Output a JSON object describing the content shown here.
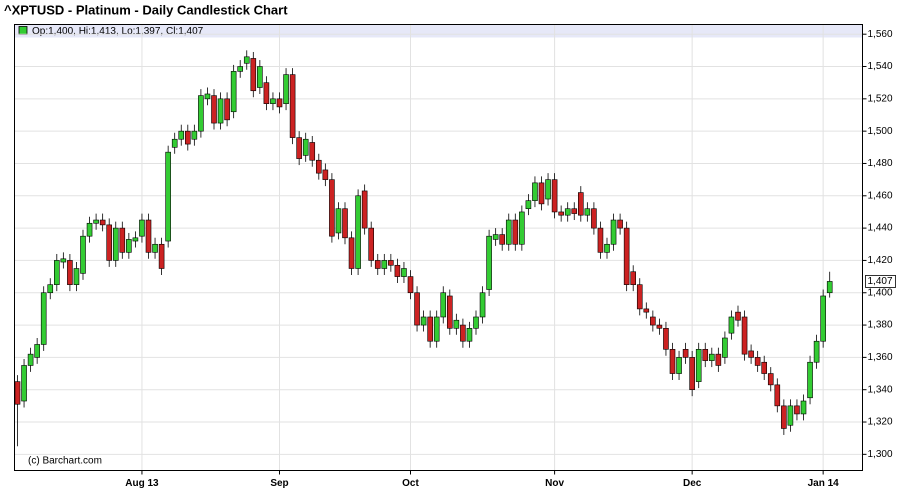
{
  "chart_data": {
    "type": "candlestick",
    "title": "^XPTUSD - Platinum - Daily Candlestick Chart",
    "legend_text": "Op:1,400, Hi:1,413, Lo:1,397, Cl:1,407",
    "credit": "(c) Barchart.com",
    "up_color": "#33cc33",
    "down_color": "#cc2222",
    "grid": true,
    "last_price": {
      "value": 1407,
      "label": "1,407"
    },
    "ylim": [
      1290,
      1566
    ],
    "yticks": [
      {
        "value": 1300,
        "label": "1,300"
      },
      {
        "value": 1320,
        "label": "1,320"
      },
      {
        "value": 1340,
        "label": "1,340"
      },
      {
        "value": 1360,
        "label": "1,360"
      },
      {
        "value": 1380,
        "label": "1,380"
      },
      {
        "value": 1400,
        "label": "1,400"
      },
      {
        "value": 1420,
        "label": "1,420"
      },
      {
        "value": 1440,
        "label": "1,440"
      },
      {
        "value": 1460,
        "label": "1,460"
      },
      {
        "value": 1480,
        "label": "1,480"
      },
      {
        "value": 1500,
        "label": "1,500"
      },
      {
        "value": 1520,
        "label": "1,520"
      },
      {
        "value": 1540,
        "label": "1,540"
      },
      {
        "value": 1560,
        "label": "1,560"
      }
    ],
    "categories": [
      null,
      null,
      null,
      null,
      null,
      null,
      null,
      null,
      null,
      null,
      null,
      null,
      null,
      null,
      null,
      null,
      null,
      null,
      null,
      "Aug 13",
      null,
      null,
      null,
      null,
      null,
      null,
      null,
      null,
      null,
      null,
      null,
      null,
      null,
      null,
      null,
      null,
      null,
      null,
      null,
      null,
      "Sep",
      null,
      null,
      null,
      null,
      null,
      null,
      null,
      null,
      null,
      null,
      null,
      null,
      null,
      null,
      null,
      null,
      null,
      null,
      null,
      "Oct",
      null,
      null,
      null,
      null,
      null,
      null,
      null,
      null,
      null,
      null,
      null,
      null,
      null,
      null,
      null,
      null,
      null,
      null,
      null,
      null,
      null,
      "Nov",
      null,
      null,
      null,
      null,
      null,
      null,
      null,
      null,
      null,
      null,
      null,
      null,
      null,
      null,
      null,
      null,
      null,
      null,
      null,
      null,
      "Dec",
      null,
      null,
      null,
      null,
      null,
      null,
      null,
      null,
      null,
      null,
      null,
      null,
      null,
      null,
      null,
      null,
      null,
      null,
      null,
      "Jan 14",
      null
    ],
    "open": [
      1345,
      1333,
      1355,
      1360,
      1368,
      1400,
      1405,
      1419,
      1420,
      1405,
      1412,
      1435,
      1443,
      1445,
      1442,
      1420,
      1440,
      1425,
      1432,
      1435,
      1445,
      1425,
      1430,
      1432,
      1490,
      1495,
      1500,
      1495,
      1500,
      1520,
      1522,
      1505,
      1520,
      1512,
      1537,
      1542,
      1545,
      1527,
      1530,
      1517,
      1520,
      1517,
      1535,
      1496,
      1485,
      1493,
      1482,
      1476,
      1470,
      1437,
      1452,
      1434,
      1415,
      1463,
      1440,
      1420,
      1415,
      1420,
      1417,
      1410,
      1410,
      1400,
      1380,
      1385,
      1370,
      1385,
      1398,
      1378,
      1380,
      1370,
      1378,
      1385,
      1402,
      1433,
      1436,
      1430,
      1445,
      1430,
      1452,
      1457,
      1468,
      1458,
      1470,
      1450,
      1448,
      1452,
      1462,
      1448,
      1452,
      1440,
      1425,
      1430,
      1445,
      1440,
      1413,
      1405,
      1390,
      1385,
      1380,
      1378,
      1365,
      1350,
      1365,
      1360,
      1345,
      1365,
      1358,
      1362,
      1360,
      1375,
      1388,
      1385,
      1364,
      1360,
      1357,
      1350,
      1343,
      1330,
      1318,
      1330,
      1325,
      1335,
      1357,
      1370,
      1400
    ],
    "high": [
      1349,
      1359,
      1366,
      1372,
      1404,
      1409,
      1424,
      1425,
      1424,
      1419,
      1439,
      1447,
      1449,
      1449,
      1446,
      1444,
      1444,
      1437,
      1438,
      1449,
      1449,
      1434,
      1434,
      1491,
      1499,
      1504,
      1504,
      1504,
      1526,
      1527,
      1526,
      1524,
      1524,
      1541,
      1544,
      1550,
      1549,
      1544,
      1534,
      1524,
      1524,
      1539,
      1539,
      1500,
      1499,
      1497,
      1486,
      1480,
      1474,
      1456,
      1456,
      1438,
      1464,
      1467,
      1444,
      1424,
      1424,
      1424,
      1421,
      1419,
      1414,
      1404,
      1389,
      1389,
      1389,
      1404,
      1402,
      1387,
      1384,
      1382,
      1389,
      1404,
      1439,
      1440,
      1440,
      1449,
      1449,
      1454,
      1461,
      1472,
      1472,
      1474,
      1474,
      1454,
      1456,
      1456,
      1466,
      1456,
      1456,
      1444,
      1434,
      1449,
      1449,
      1444,
      1417,
      1409,
      1394,
      1389,
      1384,
      1382,
      1369,
      1364,
      1369,
      1364,
      1369,
      1369,
      1366,
      1366,
      1376,
      1389,
      1392,
      1389,
      1368,
      1364,
      1361,
      1354,
      1347,
      1334,
      1334,
      1334,
      1337,
      1361,
      1374,
      1402,
      1413
    ],
    "low": [
      1305,
      1329,
      1351,
      1356,
      1364,
      1396,
      1401,
      1415,
      1401,
      1401,
      1408,
      1431,
      1439,
      1438,
      1416,
      1416,
      1421,
      1421,
      1428,
      1431,
      1421,
      1421,
      1411,
      1428,
      1486,
      1491,
      1488,
      1491,
      1496,
      1516,
      1501,
      1501,
      1503,
      1508,
      1533,
      1538,
      1521,
      1523,
      1513,
      1513,
      1511,
      1513,
      1492,
      1479,
      1481,
      1478,
      1470,
      1466,
      1431,
      1433,
      1430,
      1411,
      1411,
      1436,
      1416,
      1411,
      1411,
      1413,
      1406,
      1406,
      1396,
      1376,
      1376,
      1366,
      1366,
      1381,
      1374,
      1374,
      1366,
      1366,
      1374,
      1381,
      1398,
      1429,
      1426,
      1426,
      1426,
      1426,
      1448,
      1453,
      1451,
      1454,
      1446,
      1444,
      1444,
      1445,
      1444,
      1444,
      1436,
      1421,
      1421,
      1426,
      1436,
      1401,
      1401,
      1386,
      1384,
      1376,
      1374,
      1361,
      1346,
      1346,
      1356,
      1336,
      1341,
      1354,
      1354,
      1351,
      1356,
      1371,
      1379,
      1358,
      1356,
      1351,
      1346,
      1339,
      1326,
      1312,
      1314,
      1321,
      1321,
      1331,
      1353,
      1366,
      1397
    ],
    "close": [
      1331,
      1355,
      1362,
      1368,
      1400,
      1405,
      1420,
      1421,
      1405,
      1415,
      1435,
      1443,
      1445,
      1442,
      1420,
      1440,
      1425,
      1433,
      1434,
      1445,
      1425,
      1430,
      1415,
      1487,
      1495,
      1500,
      1492,
      1500,
      1522,
      1523,
      1505,
      1520,
      1507,
      1537,
      1540,
      1546,
      1525,
      1540,
      1517,
      1520,
      1515,
      1535,
      1496,
      1483,
      1495,
      1482,
      1474,
      1470,
      1435,
      1452,
      1434,
      1415,
      1460,
      1440,
      1420,
      1415,
      1420,
      1417,
      1410,
      1415,
      1400,
      1380,
      1385,
      1370,
      1385,
      1400,
      1378,
      1383,
      1370,
      1378,
      1385,
      1400,
      1435,
      1436,
      1430,
      1445,
      1430,
      1450,
      1457,
      1468,
      1455,
      1470,
      1450,
      1448,
      1452,
      1449,
      1448,
      1452,
      1440,
      1425,
      1430,
      1445,
      1440,
      1405,
      1405,
      1390,
      1388,
      1380,
      1378,
      1365,
      1350,
      1360,
      1360,
      1340,
      1365,
      1358,
      1362,
      1355,
      1372,
      1385,
      1383,
      1362,
      1360,
      1355,
      1350,
      1343,
      1330,
      1316,
      1330,
      1325,
      1333,
      1357,
      1370,
      1398,
      1407
    ]
  }
}
